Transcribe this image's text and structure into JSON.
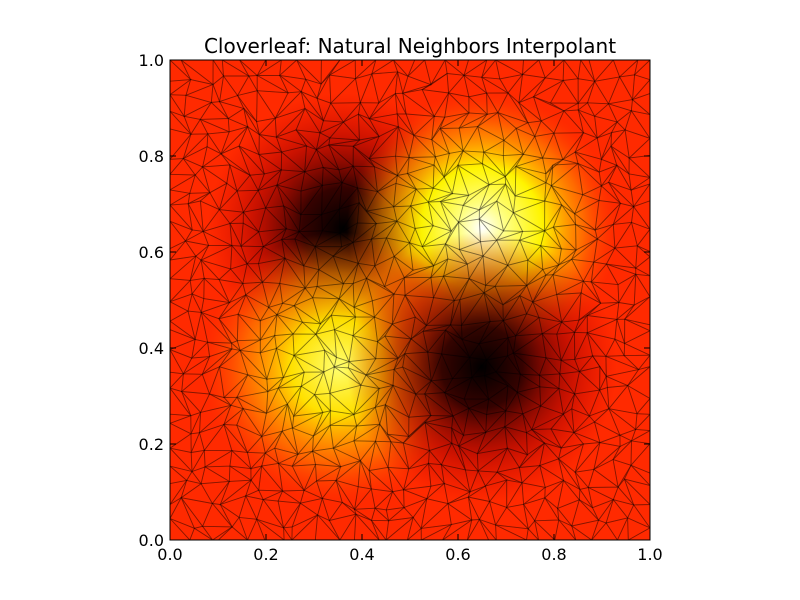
{
  "chart_data": {
    "type": "heatmap",
    "title": "Cloverleaf: Natural Neighbors Interpolant",
    "xlabel": "",
    "ylabel": "",
    "xlim": [
      0.0,
      1.0
    ],
    "ylim": [
      0.0,
      1.0
    ],
    "x_ticks": [
      "0.0",
      "0.2",
      "0.4",
      "0.6",
      "0.8",
      "1.0"
    ],
    "y_ticks": [
      "0.0",
      "0.2",
      "0.4",
      "0.6",
      "0.8",
      "1.0"
    ],
    "x_tick_values": [
      0.0,
      0.2,
      0.4,
      0.6,
      0.8,
      1.0
    ],
    "y_tick_values": [
      0.0,
      0.2,
      0.4,
      0.6,
      0.8,
      1.0
    ],
    "colormap": "hot",
    "grid": false,
    "overlay": "Delaunay triangulation mesh",
    "features": [
      {
        "kind": "minimum",
        "x": 0.36,
        "y": 0.65
      },
      {
        "kind": "maximum",
        "x": 0.65,
        "y": 0.65
      },
      {
        "kind": "maximum",
        "x": 0.35,
        "y": 0.36
      },
      {
        "kind": "minimum",
        "x": 0.65,
        "y": 0.36
      }
    ],
    "colors": {
      "background": "#ff2a00",
      "peak": "#ffffff",
      "valley": "#000000",
      "mesh": "#000000"
    }
  }
}
